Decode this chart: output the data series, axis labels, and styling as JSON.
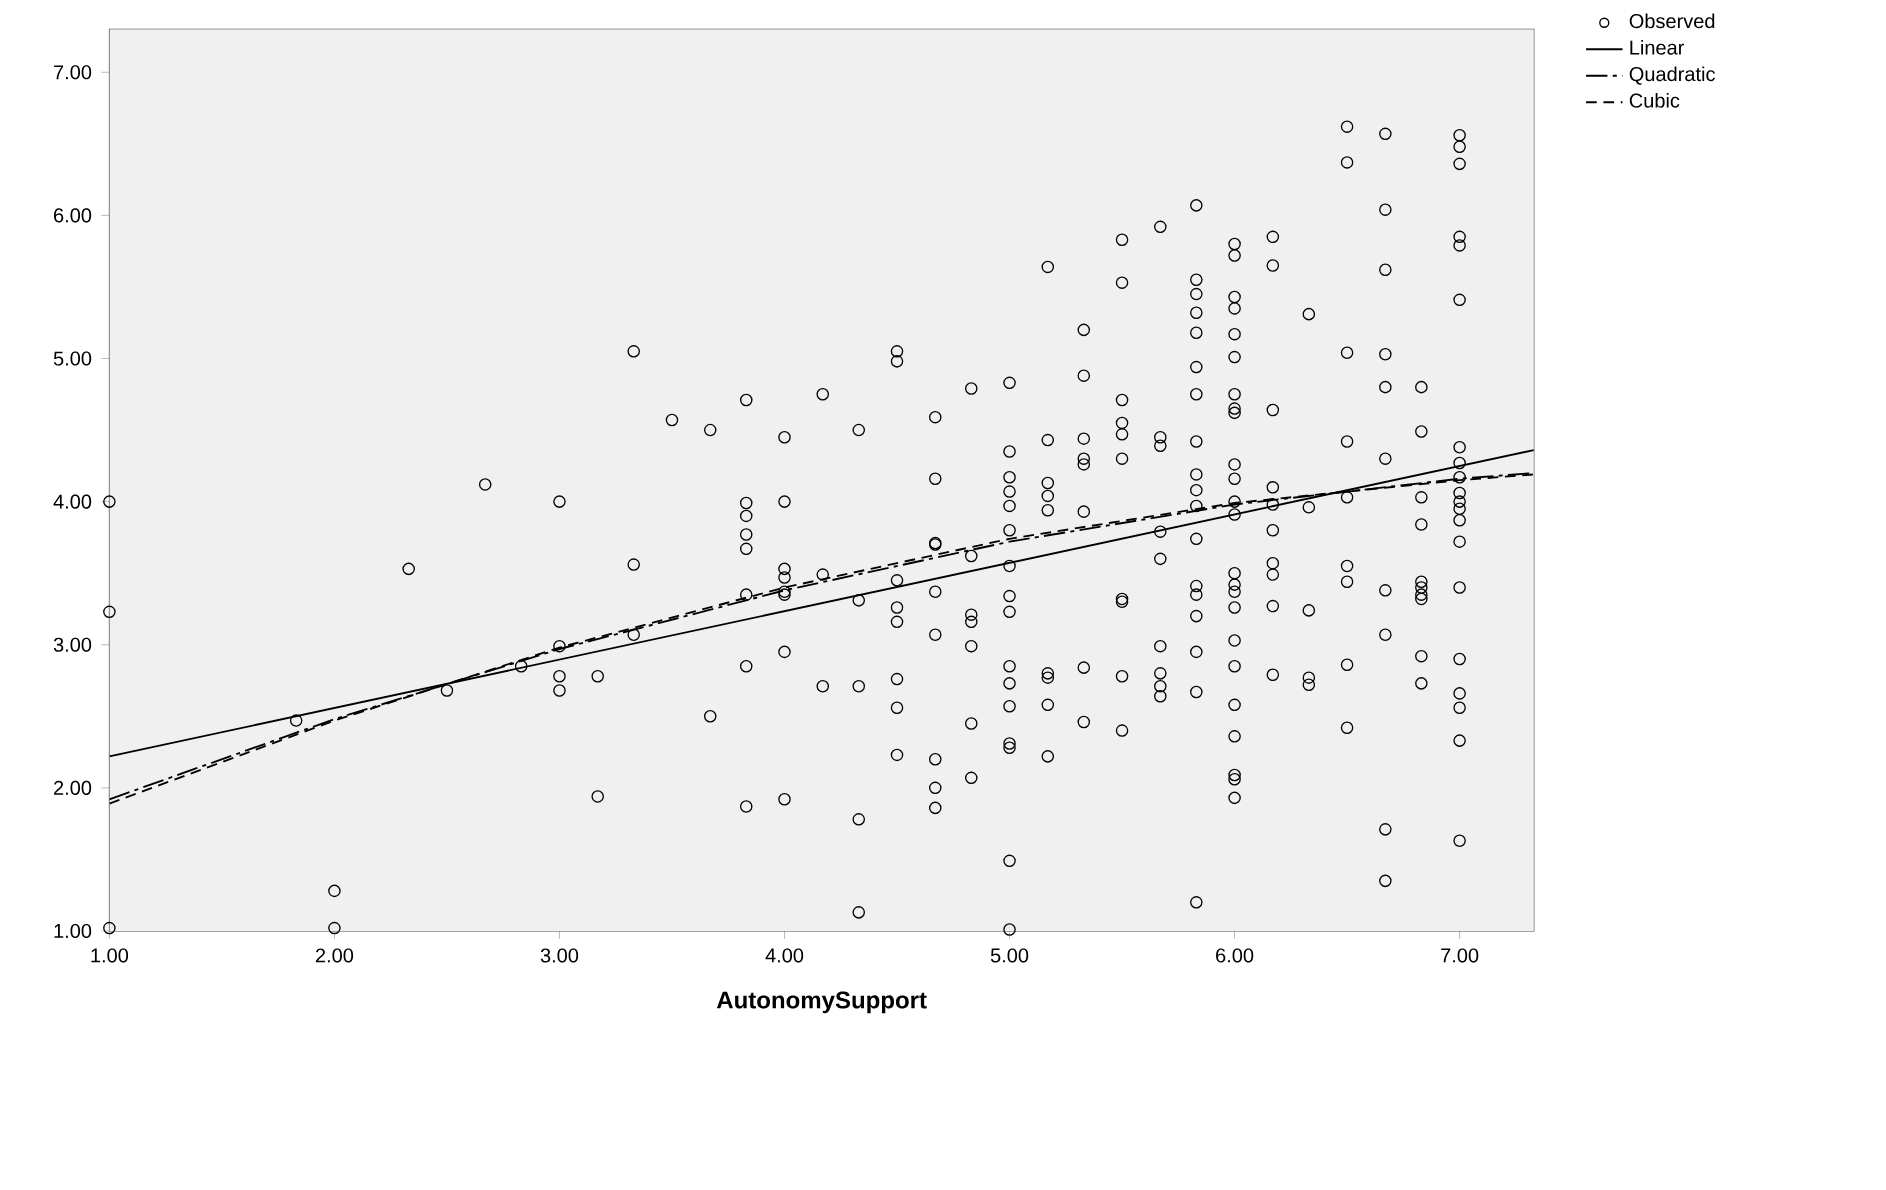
{
  "chart_data": {
    "type": "scatter",
    "xlabel": "AutonomySupport",
    "xlim": [
      1,
      7.33
    ],
    "ylim": [
      1,
      7.3
    ],
    "xticks": [
      {
        "value": 1,
        "label": "1.00"
      },
      {
        "value": 2,
        "label": "2.00"
      },
      {
        "value": 3,
        "label": "3.00"
      },
      {
        "value": 4,
        "label": "4.00"
      },
      {
        "value": 5,
        "label": "5.00"
      },
      {
        "value": 6,
        "label": "6.00"
      },
      {
        "value": 7,
        "label": "7.00"
      }
    ],
    "yticks": [
      {
        "value": 1,
        "label": "1.00"
      },
      {
        "value": 2,
        "label": "2.00"
      },
      {
        "value": 3,
        "label": "3.00"
      },
      {
        "value": 4,
        "label": "4.00"
      },
      {
        "value": 5,
        "label": "5.00"
      },
      {
        "value": 6,
        "label": "6.00"
      },
      {
        "value": 7,
        "label": "7.00"
      }
    ],
    "legend": "top right",
    "series": [
      {
        "name": "Observed",
        "marker": "circle",
        "color": "#000000",
        "x": [
          1,
          1,
          1,
          1.83,
          2,
          2,
          2.33,
          2.5,
          2.67,
          2.83,
          3,
          3,
          3,
          3,
          3.17,
          3.17,
          3.33,
          3.33,
          3.33,
          3.5,
          3.67,
          3.67,
          3.83,
          3.83,
          3.83,
          3.83,
          3.83,
          3.83,
          3.83,
          3.83,
          4,
          4,
          4,
          4,
          4,
          4,
          4,
          4,
          4.17,
          4.17,
          4.17,
          4.33,
          4.33,
          4.33,
          4.33,
          4.33,
          4.5,
          4.5,
          4.5,
          4.5,
          4.5,
          4.5,
          4.5,
          4.5,
          4.67,
          4.67,
          4.67,
          4.67,
          4.67,
          4.67,
          4.67,
          4.67,
          4.67,
          4.83,
          4.83,
          4.83,
          4.83,
          4.83,
          4.83,
          4.83,
          5,
          5,
          5,
          5,
          5,
          5,
          5,
          5,
          5,
          5,
          5,
          5,
          5,
          5,
          5,
          5,
          5.17,
          5.17,
          5.17,
          5.17,
          5.17,
          5.17,
          5.17,
          5.17,
          5.17,
          5.33,
          5.33,
          5.33,
          5.33,
          5.33,
          5.33,
          5.33,
          5.33,
          5.5,
          5.5,
          5.5,
          5.5,
          5.5,
          5.5,
          5.5,
          5.5,
          5.5,
          5.5,
          5.67,
          5.67,
          5.67,
          5.67,
          5.67,
          5.67,
          5.67,
          5.67,
          5.67,
          5.83,
          5.83,
          5.83,
          5.83,
          5.83,
          5.83,
          5.83,
          5.83,
          5.83,
          5.83,
          5.83,
          5.83,
          5.83,
          5.83,
          5.83,
          5.83,
          5.83,
          5.83,
          6,
          6,
          6,
          6,
          6,
          6,
          6,
          6,
          6,
          6,
          6,
          6,
          6,
          6,
          6,
          6,
          6,
          6,
          6,
          6,
          6,
          6,
          6,
          6,
          6.17,
          6.17,
          6.17,
          6.17,
          6.17,
          6.17,
          6.17,
          6.17,
          6.17,
          6.17,
          6.33,
          6.33,
          6.33,
          6.33,
          6.33,
          6.5,
          6.5,
          6.5,
          6.5,
          6.5,
          6.5,
          6.5,
          6.5,
          6.5,
          6.67,
          6.67,
          6.67,
          6.67,
          6.67,
          6.67,
          6.67,
          6.67,
          6.67,
          6.67,
          6.83,
          6.83,
          6.83,
          6.83,
          6.83,
          6.83,
          6.83,
          6.83,
          6.83,
          6.83,
          7,
          7,
          7,
          7,
          7,
          7,
          7,
          7,
          7,
          7,
          7,
          7,
          7,
          7,
          7,
          7,
          7,
          7,
          7,
          7
        ],
        "values": [
          4.0,
          3.23,
          1.02,
          2.47,
          1.28,
          1.02,
          3.53,
          2.68,
          4.12,
          2.85,
          4.0,
          2.99,
          2.78,
          2.68,
          2.78,
          1.94,
          5.05,
          3.56,
          3.07,
          4.57,
          4.5,
          2.5,
          4.71,
          3.99,
          3.9,
          3.77,
          3.67,
          3.35,
          2.85,
          1.87,
          4.45,
          4.0,
          3.53,
          3.47,
          3.37,
          3.35,
          2.95,
          1.92,
          4.75,
          3.49,
          2.71,
          4.5,
          3.31,
          2.71,
          1.78,
          1.13,
          5.05,
          4.98,
          3.45,
          3.26,
          3.16,
          2.76,
          2.56,
          2.23,
          4.59,
          4.16,
          3.71,
          3.7,
          3.37,
          3.07,
          2.2,
          2.0,
          1.86,
          4.79,
          3.62,
          3.21,
          3.16,
          2.99,
          2.45,
          2.07,
          4.83,
          4.35,
          4.17,
          4.07,
          3.97,
          3.8,
          3.55,
          3.34,
          3.23,
          2.85,
          2.73,
          2.57,
          2.31,
          2.28,
          1.49,
          1.01,
          5.64,
          4.43,
          4.13,
          4.04,
          3.94,
          2.8,
          2.77,
          2.58,
          2.22,
          5.2,
          4.88,
          4.44,
          4.3,
          4.26,
          3.93,
          2.84,
          2.46,
          5.83,
          5.53,
          4.71,
          4.55,
          4.47,
          4.3,
          3.32,
          3.3,
          2.78,
          2.4,
          5.92,
          4.45,
          4.39,
          3.79,
          3.6,
          2.99,
          2.8,
          2.71,
          2.64,
          6.07,
          5.55,
          5.45,
          5.32,
          5.18,
          4.94,
          4.75,
          4.42,
          4.19,
          4.08,
          3.97,
          3.74,
          3.41,
          3.35,
          3.2,
          2.95,
          2.67,
          1.2,
          5.8,
          5.72,
          5.43,
          5.35,
          5.17,
          5.01,
          4.75,
          4.65,
          4.62,
          4.26,
          4.16,
          4.0,
          3.91,
          3.5,
          3.42,
          3.37,
          3.26,
          3.03,
          2.85,
          2.58,
          2.36,
          2.09,
          2.06,
          1.93,
          5.85,
          5.65,
          4.64,
          4.1,
          3.98,
          3.8,
          3.57,
          3.49,
          3.27,
          2.79,
          5.31,
          3.96,
          3.24,
          2.77,
          2.72,
          6.62,
          6.37,
          5.04,
          4.42,
          4.03,
          3.55,
          3.44,
          2.86,
          2.42,
          6.57,
          6.04,
          5.62,
          5.03,
          4.8,
          4.3,
          3.38,
          3.07,
          1.71,
          1.35,
          4.8,
          4.49,
          4.03,
          3.84,
          3.44,
          3.4,
          3.35,
          3.32,
          2.92,
          2.73,
          6.56,
          6.48,
          6.36,
          5.85,
          5.79,
          5.41,
          4.38,
          4.27,
          4.17,
          4.06,
          4.0,
          3.95,
          3.87,
          3.72,
          3.4,
          2.9,
          2.66,
          2.56,
          2.33,
          1.63
        ]
      },
      {
        "name": "Linear",
        "type": "line",
        "marker": "none",
        "line_style": "solid",
        "color": "#000000",
        "x": [
          1,
          7.33
        ],
        "values": [
          2.22,
          4.36
        ]
      },
      {
        "name": "Quadratic",
        "type": "line",
        "marker": "none",
        "line_style": "dashdot",
        "color": "#000000",
        "x": [
          1,
          2,
          3,
          4,
          5,
          6,
          7,
          7.33
        ],
        "values": [
          1.92,
          2.48,
          2.97,
          3.38,
          3.72,
          3.98,
          4.16,
          4.2
        ]
      },
      {
        "name": "Cubic",
        "type": "line",
        "marker": "none",
        "line_style": "dashed",
        "color": "#000000",
        "x": [
          1,
          2,
          3,
          4,
          5,
          6,
          7,
          7.33
        ],
        "values": [
          1.89,
          2.47,
          2.98,
          3.4,
          3.74,
          3.99,
          4.15,
          4.19
        ]
      }
    ]
  }
}
